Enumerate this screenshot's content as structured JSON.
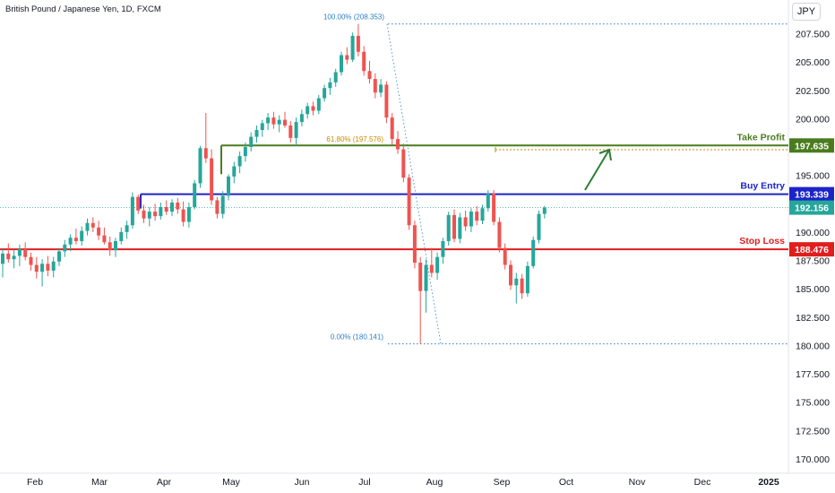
{
  "header": {
    "title": "British Pound / Japanese Yen, 1D, FXCM",
    "currency": "JPY"
  },
  "colors": {
    "up": "#26a69a",
    "down": "#ef5350",
    "take_profit": "#4a7c1f",
    "buy_entry": "#1c24c8",
    "stop_loss": "#e01e1e",
    "current": "#26a69a",
    "fib": "#2b7fc4",
    "fib618": "#c78b00",
    "arrow": "#2e7d32"
  },
  "chart_data": {
    "type": "candlestick",
    "symbol": "British Pound / Japanese Yen",
    "interval": "1D",
    "source": "FXCM",
    "ylim": [
      170,
      208.5
    ],
    "y_ticks": [
      "207.500",
      "205.000",
      "202.500",
      "200.000",
      "197.500",
      "195.000",
      "192.500",
      "190.000",
      "187.500",
      "185.000",
      "182.500",
      "180.000",
      "177.500",
      "175.000",
      "172.500",
      "170.000"
    ],
    "x_ticks": [
      "Feb",
      "Mar",
      "Apr",
      "May",
      "Jun",
      "Jul",
      "Aug",
      "Sep",
      "Oct",
      "Nov",
      "Dec",
      "2025"
    ],
    "levels": [
      {
        "name": "Take Profit",
        "value": 197.635,
        "label": "197.635"
      },
      {
        "name": "Buy Entry",
        "value": 193.339,
        "label": "193.339"
      },
      {
        "name": "Stop Loss",
        "value": 188.476,
        "label": "188.476"
      }
    ],
    "current_price": {
      "value": 192.156,
      "label": "192.156"
    },
    "fibonacci": [
      {
        "label": "100.00% (208.353)",
        "value": 208.353
      },
      {
        "label": "61.80% (197.576)",
        "value": 197.576
      },
      {
        "label": "0.00% (180.141)",
        "value": 180.141
      }
    ],
    "candles": [
      {
        "t": 0,
        "o": 187.2,
        "h": 188.6,
        "l": 186.0,
        "c": 188.1
      },
      {
        "t": 1,
        "o": 188.1,
        "h": 189.0,
        "l": 187.3,
        "c": 187.6
      },
      {
        "t": 2,
        "o": 187.6,
        "h": 188.4,
        "l": 186.8,
        "c": 187.9
      },
      {
        "t": 3,
        "o": 187.9,
        "h": 188.9,
        "l": 187.0,
        "c": 188.5
      },
      {
        "t": 4,
        "o": 188.5,
        "h": 189.1,
        "l": 187.5,
        "c": 187.8
      },
      {
        "t": 5,
        "o": 187.8,
        "h": 188.2,
        "l": 186.6,
        "c": 187.1
      },
      {
        "t": 6,
        "o": 187.1,
        "h": 187.8,
        "l": 185.9,
        "c": 186.5
      },
      {
        "t": 7,
        "o": 186.5,
        "h": 187.6,
        "l": 185.2,
        "c": 187.2
      },
      {
        "t": 8,
        "o": 187.2,
        "h": 187.9,
        "l": 186.1,
        "c": 186.6
      },
      {
        "t": 9,
        "o": 186.6,
        "h": 187.8,
        "l": 186.0,
        "c": 187.4
      },
      {
        "t": 10,
        "o": 187.4,
        "h": 188.6,
        "l": 187.0,
        "c": 188.3
      },
      {
        "t": 11,
        "o": 188.3,
        "h": 189.3,
        "l": 187.8,
        "c": 188.9
      },
      {
        "t": 12,
        "o": 188.9,
        "h": 189.8,
        "l": 188.3,
        "c": 189.5
      },
      {
        "t": 13,
        "o": 189.5,
        "h": 190.3,
        "l": 188.9,
        "c": 189.2
      },
      {
        "t": 14,
        "o": 189.2,
        "h": 190.5,
        "l": 188.8,
        "c": 190.1
      },
      {
        "t": 15,
        "o": 190.1,
        "h": 191.2,
        "l": 189.7,
        "c": 190.8
      },
      {
        "t": 16,
        "o": 190.8,
        "h": 191.3,
        "l": 190.0,
        "c": 190.4
      },
      {
        "t": 17,
        "o": 190.4,
        "h": 191.0,
        "l": 189.3,
        "c": 189.7
      },
      {
        "t": 18,
        "o": 189.7,
        "h": 190.4,
        "l": 188.9,
        "c": 189.1
      },
      {
        "t": 19,
        "o": 189.1,
        "h": 189.6,
        "l": 187.9,
        "c": 188.4
      },
      {
        "t": 20,
        "o": 188.4,
        "h": 189.5,
        "l": 187.8,
        "c": 189.2
      },
      {
        "t": 21,
        "o": 189.2,
        "h": 190.4,
        "l": 188.9,
        "c": 190.0
      },
      {
        "t": 22,
        "o": 190.0,
        "h": 191.0,
        "l": 189.4,
        "c": 190.6
      },
      {
        "t": 23,
        "o": 190.6,
        "h": 193.5,
        "l": 190.3,
        "c": 193.1
      },
      {
        "t": 24,
        "o": 193.1,
        "h": 193.3,
        "l": 191.6,
        "c": 191.9
      },
      {
        "t": 25,
        "o": 191.9,
        "h": 192.4,
        "l": 190.8,
        "c": 191.2
      },
      {
        "t": 26,
        "o": 191.2,
        "h": 192.2,
        "l": 190.5,
        "c": 191.8
      },
      {
        "t": 27,
        "o": 191.8,
        "h": 192.5,
        "l": 191.0,
        "c": 191.4
      },
      {
        "t": 28,
        "o": 191.4,
        "h": 192.6,
        "l": 191.1,
        "c": 192.2
      },
      {
        "t": 29,
        "o": 192.2,
        "h": 192.8,
        "l": 191.5,
        "c": 191.8
      },
      {
        "t": 30,
        "o": 191.8,
        "h": 192.9,
        "l": 191.4,
        "c": 192.6
      },
      {
        "t": 31,
        "o": 192.6,
        "h": 193.0,
        "l": 191.6,
        "c": 192.0
      },
      {
        "t": 32,
        "o": 192.0,
        "h": 192.7,
        "l": 190.5,
        "c": 190.9
      },
      {
        "t": 33,
        "o": 190.9,
        "h": 192.6,
        "l": 190.4,
        "c": 192.2
      },
      {
        "t": 34,
        "o": 192.2,
        "h": 194.6,
        "l": 192.0,
        "c": 194.3
      },
      {
        "t": 35,
        "o": 194.3,
        "h": 197.6,
        "l": 193.9,
        "c": 197.4
      },
      {
        "t": 36,
        "o": 197.4,
        "h": 200.5,
        "l": 196.1,
        "c": 196.5
      },
      {
        "t": 37,
        "o": 196.5,
        "h": 197.3,
        "l": 192.4,
        "c": 192.8
      },
      {
        "t": 38,
        "o": 192.8,
        "h": 193.1,
        "l": 191.2,
        "c": 191.6
      },
      {
        "t": 39,
        "o": 191.6,
        "h": 193.6,
        "l": 191.2,
        "c": 193.2
      },
      {
        "t": 40,
        "o": 193.2,
        "h": 195.1,
        "l": 192.8,
        "c": 194.9
      },
      {
        "t": 41,
        "o": 194.9,
        "h": 196.2,
        "l": 194.3,
        "c": 195.8
      },
      {
        "t": 42,
        "o": 195.8,
        "h": 197.1,
        "l": 195.2,
        "c": 196.7
      },
      {
        "t": 43,
        "o": 196.7,
        "h": 197.9,
        "l": 196.2,
        "c": 197.5
      },
      {
        "t": 44,
        "o": 197.5,
        "h": 198.8,
        "l": 197.1,
        "c": 198.4
      },
      {
        "t": 45,
        "o": 198.4,
        "h": 199.4,
        "l": 197.9,
        "c": 199.0
      },
      {
        "t": 46,
        "o": 199.0,
        "h": 199.9,
        "l": 198.4,
        "c": 199.6
      },
      {
        "t": 47,
        "o": 199.6,
        "h": 200.5,
        "l": 199.0,
        "c": 200.1
      },
      {
        "t": 48,
        "o": 200.1,
        "h": 200.6,
        "l": 199.1,
        "c": 199.5
      },
      {
        "t": 49,
        "o": 199.5,
        "h": 200.3,
        "l": 198.8,
        "c": 199.9
      },
      {
        "t": 50,
        "o": 199.9,
        "h": 200.6,
        "l": 199.2,
        "c": 199.4
      },
      {
        "t": 51,
        "o": 199.4,
        "h": 199.8,
        "l": 197.9,
        "c": 198.3
      },
      {
        "t": 52,
        "o": 198.3,
        "h": 200.1,
        "l": 197.6,
        "c": 199.7
      },
      {
        "t": 53,
        "o": 199.7,
        "h": 200.8,
        "l": 199.3,
        "c": 200.4
      },
      {
        "t": 54,
        "o": 200.4,
        "h": 201.4,
        "l": 200.0,
        "c": 201.1
      },
      {
        "t": 55,
        "o": 201.1,
        "h": 201.5,
        "l": 200.3,
        "c": 200.7
      },
      {
        "t": 56,
        "o": 200.7,
        "h": 202.1,
        "l": 200.4,
        "c": 201.8
      },
      {
        "t": 57,
        "o": 201.8,
        "h": 203.0,
        "l": 201.5,
        "c": 202.7
      },
      {
        "t": 58,
        "o": 202.7,
        "h": 203.6,
        "l": 202.1,
        "c": 203.2
      },
      {
        "t": 59,
        "o": 203.2,
        "h": 204.4,
        "l": 202.8,
        "c": 204.1
      },
      {
        "t": 60,
        "o": 204.1,
        "h": 205.9,
        "l": 203.8,
        "c": 205.6
      },
      {
        "t": 61,
        "o": 205.6,
        "h": 206.3,
        "l": 204.8,
        "c": 205.2
      },
      {
        "t": 62,
        "o": 205.2,
        "h": 207.6,
        "l": 205.0,
        "c": 207.3
      },
      {
        "t": 63,
        "o": 207.3,
        "h": 208.35,
        "l": 205.5,
        "c": 205.9
      },
      {
        "t": 64,
        "o": 205.9,
        "h": 206.4,
        "l": 203.8,
        "c": 204.2
      },
      {
        "t": 65,
        "o": 204.2,
        "h": 205.1,
        "l": 203.1,
        "c": 203.5
      },
      {
        "t": 66,
        "o": 203.5,
        "h": 204.0,
        "l": 201.8,
        "c": 202.3
      },
      {
        "t": 67,
        "o": 202.3,
        "h": 203.5,
        "l": 201.9,
        "c": 203.0
      },
      {
        "t": 68,
        "o": 203.0,
        "h": 203.3,
        "l": 199.6,
        "c": 200.1
      },
      {
        "t": 69,
        "o": 200.1,
        "h": 200.5,
        "l": 197.7,
        "c": 198.2
      },
      {
        "t": 70,
        "o": 198.2,
        "h": 198.9,
        "l": 196.9,
        "c": 197.3
      },
      {
        "t": 71,
        "o": 197.3,
        "h": 197.8,
        "l": 194.4,
        "c": 194.8
      },
      {
        "t": 72,
        "o": 194.8,
        "h": 195.1,
        "l": 190.2,
        "c": 190.6
      },
      {
        "t": 73,
        "o": 190.6,
        "h": 191.0,
        "l": 186.8,
        "c": 187.3
      },
      {
        "t": 74,
        "o": 187.3,
        "h": 187.8,
        "l": 180.14,
        "c": 184.8
      },
      {
        "t": 75,
        "o": 184.8,
        "h": 187.6,
        "l": 182.9,
        "c": 187.1
      },
      {
        "t": 76,
        "o": 187.1,
        "h": 188.6,
        "l": 186.0,
        "c": 186.4
      },
      {
        "t": 77,
        "o": 186.4,
        "h": 188.2,
        "l": 185.8,
        "c": 187.8
      },
      {
        "t": 78,
        "o": 187.8,
        "h": 189.5,
        "l": 187.2,
        "c": 189.2
      },
      {
        "t": 79,
        "o": 189.2,
        "h": 191.8,
        "l": 188.8,
        "c": 191.5
      },
      {
        "t": 80,
        "o": 191.5,
        "h": 192.0,
        "l": 189.1,
        "c": 189.4
      },
      {
        "t": 81,
        "o": 189.4,
        "h": 191.7,
        "l": 189.0,
        "c": 191.3
      },
      {
        "t": 82,
        "o": 191.3,
        "h": 191.9,
        "l": 190.1,
        "c": 190.5
      },
      {
        "t": 83,
        "o": 190.5,
        "h": 192.1,
        "l": 190.0,
        "c": 191.8
      },
      {
        "t": 84,
        "o": 191.8,
        "h": 192.3,
        "l": 190.6,
        "c": 191.0
      },
      {
        "t": 85,
        "o": 191.0,
        "h": 192.4,
        "l": 190.7,
        "c": 192.1
      },
      {
        "t": 86,
        "o": 192.1,
        "h": 193.7,
        "l": 191.8,
        "c": 193.4
      },
      {
        "t": 87,
        "o": 193.4,
        "h": 193.7,
        "l": 190.6,
        "c": 190.9
      },
      {
        "t": 88,
        "o": 190.9,
        "h": 191.3,
        "l": 188.2,
        "c": 188.6
      },
      {
        "t": 89,
        "o": 188.6,
        "h": 189.0,
        "l": 186.7,
        "c": 187.1
      },
      {
        "t": 90,
        "o": 187.1,
        "h": 187.5,
        "l": 184.9,
        "c": 185.3
      },
      {
        "t": 91,
        "o": 185.3,
        "h": 186.4,
        "l": 183.7,
        "c": 185.9
      },
      {
        "t": 92,
        "o": 185.9,
        "h": 186.3,
        "l": 184.1,
        "c": 184.6
      },
      {
        "t": 93,
        "o": 184.6,
        "h": 187.4,
        "l": 184.3,
        "c": 187.0
      },
      {
        "t": 94,
        "o": 187.0,
        "h": 189.6,
        "l": 186.8,
        "c": 189.3
      },
      {
        "t": 95,
        "o": 189.3,
        "h": 191.9,
        "l": 189.0,
        "c": 191.6
      },
      {
        "t": 96,
        "o": 191.6,
        "h": 192.3,
        "l": 191.2,
        "c": 192.156
      }
    ]
  }
}
